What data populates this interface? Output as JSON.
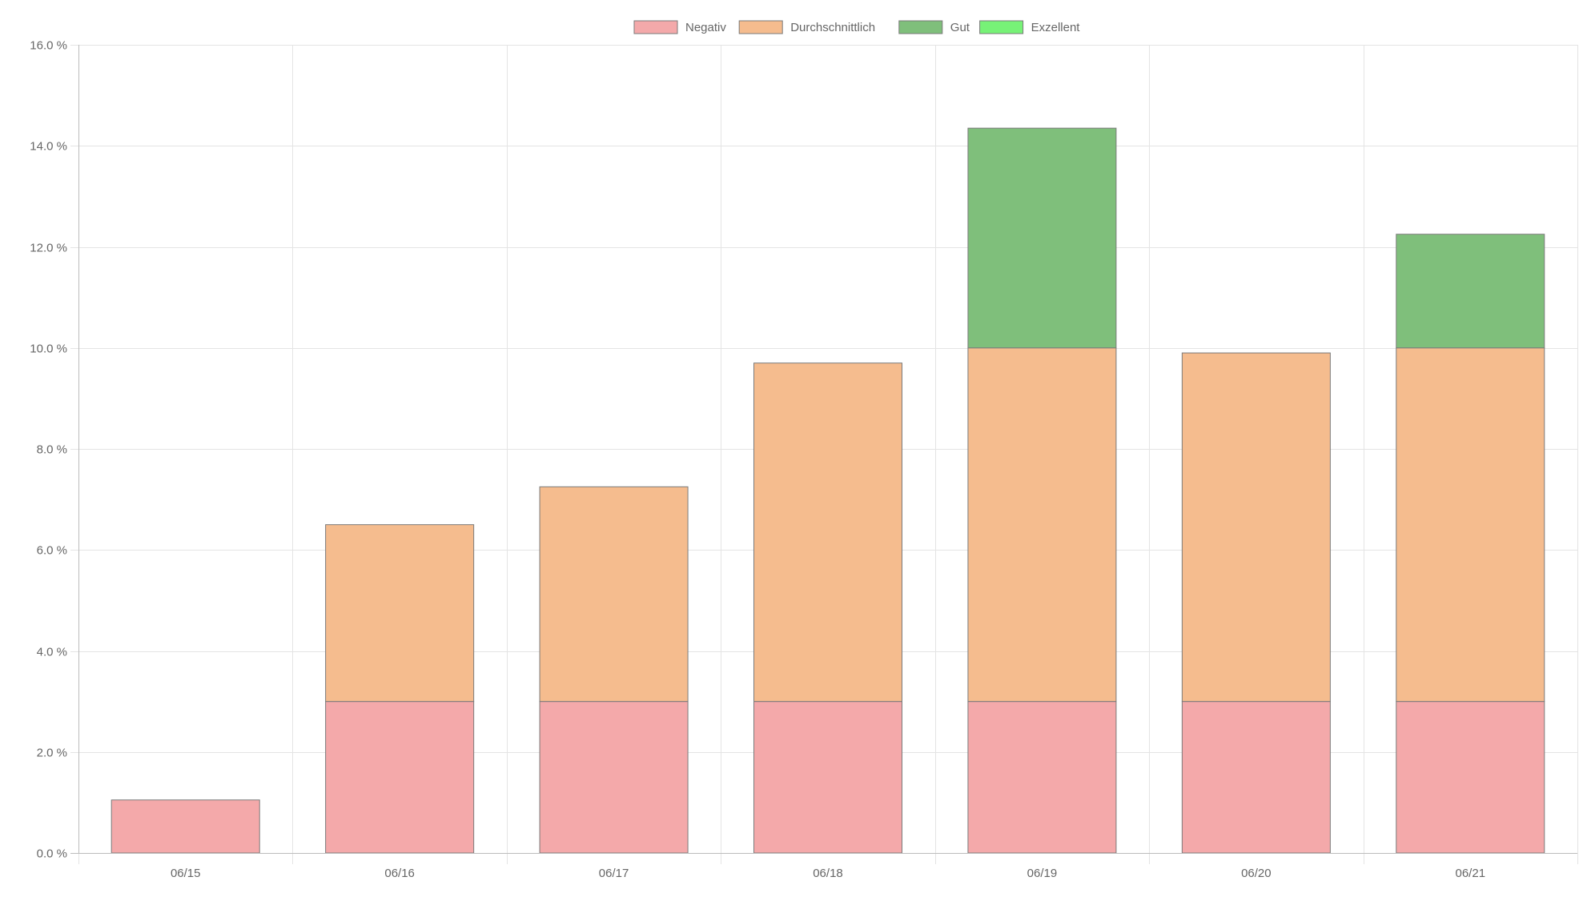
{
  "chart_data": {
    "type": "bar",
    "stacked": true,
    "categories": [
      "06/15",
      "06/16",
      "06/17",
      "06/18",
      "06/19",
      "06/20",
      "06/21"
    ],
    "series": [
      {
        "name": "Negativ",
        "values": [
          1.05,
          3.0,
          3.0,
          3.0,
          3.0,
          3.0,
          3.0
        ],
        "color": "#f4a9aa"
      },
      {
        "name": "Durchschnittlich",
        "values": [
          0,
          3.5,
          4.25,
          6.7,
          7.0,
          6.9,
          7.0
        ],
        "color": "#f5bc8e"
      },
      {
        "name": "Gut",
        "values": [
          0,
          0,
          0,
          0,
          4.35,
          0,
          2.25
        ],
        "color": "#7fbf7b"
      },
      {
        "name": "Exzellent",
        "values": [
          0,
          0,
          0,
          0,
          0,
          0,
          0
        ],
        "color": "#77f277"
      }
    ],
    "ylim": [
      0,
      16
    ],
    "yticks": [
      0,
      2,
      4,
      6,
      8,
      10,
      12,
      14,
      16
    ],
    "ytick_labels": [
      "0.0 %",
      "2.0 %",
      "4.0 %",
      "6.0 %",
      "8.0 %",
      "10.0 %",
      "12.0 %",
      "14.0 %",
      "16.0 %"
    ],
    "grid": true,
    "legend_position": "top-center",
    "title": "",
    "xlabel": "",
    "ylabel": ""
  }
}
